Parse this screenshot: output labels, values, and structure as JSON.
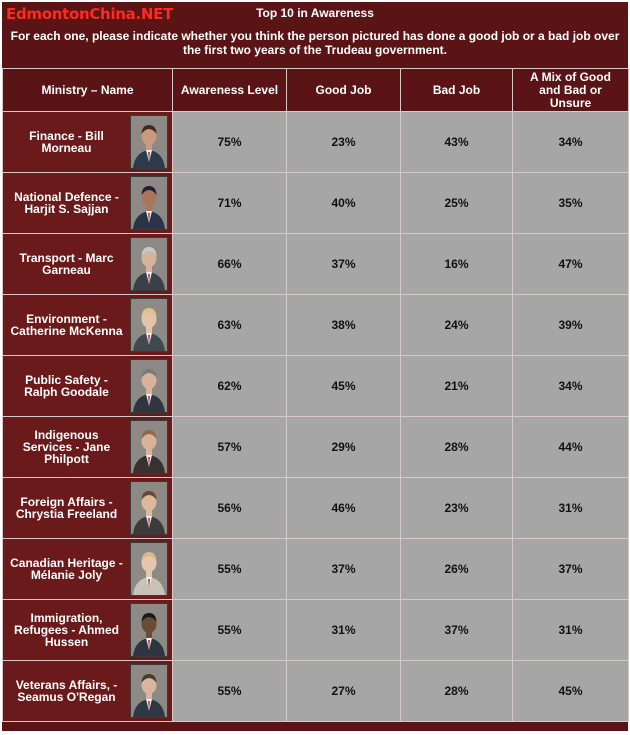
{
  "header": {
    "watermark": "EdmontonChina.NET",
    "title": "Top 10 in Awareness",
    "question": "For each one, please indicate whether you think the person pictured has done a good job or a bad job over the first two years of the Trudeau government."
  },
  "chart_data": {
    "type": "table",
    "columns": [
      "Ministry – Name",
      "Awareness Level",
      "Good Job",
      "Bad Job",
      "A Mix of Good and Bad or Unsure"
    ],
    "rows": [
      {
        "name": "Finance - Bill Morneau",
        "awareness": "75%",
        "good": "23%",
        "bad": "43%",
        "mix": "34%"
      },
      {
        "name": "National Defence - Harjit S. Sajjan",
        "awareness": "71%",
        "good": "40%",
        "bad": "25%",
        "mix": "35%"
      },
      {
        "name": "Transport - Marc Garneau",
        "awareness": "66%",
        "good": "37%",
        "bad": "16%",
        "mix": "47%"
      },
      {
        "name": "Environment - Catherine McKenna",
        "awareness": "63%",
        "good": "38%",
        "bad": "24%",
        "mix": "39%"
      },
      {
        "name": "Public Safety - Ralph Goodale",
        "awareness": "62%",
        "good": "45%",
        "bad": "21%",
        "mix": "34%"
      },
      {
        "name": "Indigenous Services - Jane Philpott",
        "awareness": "57%",
        "good": "29%",
        "bad": "28%",
        "mix": "44%"
      },
      {
        "name": "Foreign Affairs - Chrystia Freeland",
        "awareness": "56%",
        "good": "46%",
        "bad": "23%",
        "mix": "31%"
      },
      {
        "name": "Canadian Heritage - Mélanie Joly",
        "awareness": "55%",
        "good": "37%",
        "bad": "26%",
        "mix": "37%"
      },
      {
        "name": "Immigration, Refugees - Ahmed Hussen",
        "awareness": "55%",
        "good": "31%",
        "bad": "37%",
        "mix": "31%"
      },
      {
        "name": "Veterans Affairs, - Seamus O'Regan",
        "awareness": "55%",
        "good": "27%",
        "bad": "28%",
        "mix": "45%"
      }
    ]
  },
  "colors": {
    "header_bg": "#5a1416",
    "name_bg": "#6b1a1c",
    "value_bg": "#a6a6a6",
    "watermark": "#ff2a1f"
  }
}
